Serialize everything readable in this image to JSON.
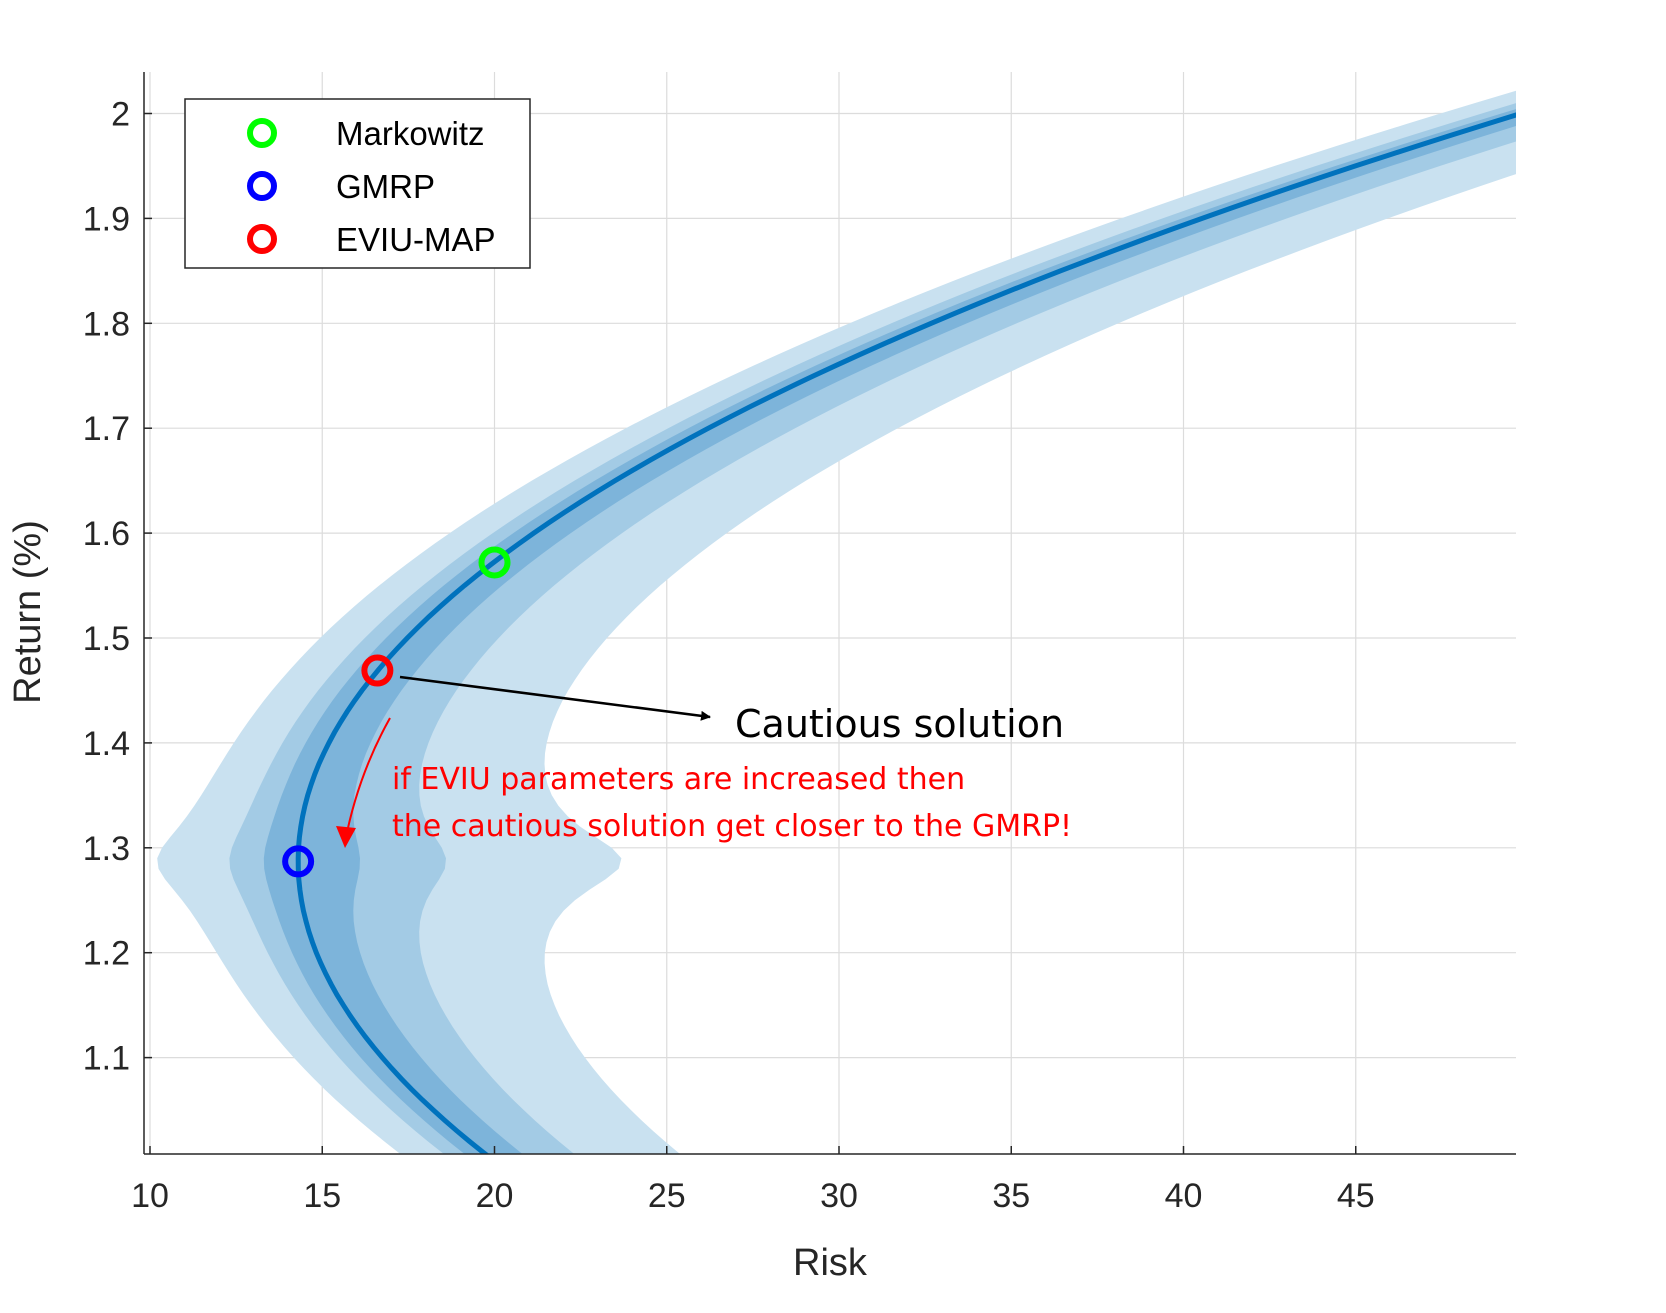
{
  "chart_data": {
    "type": "line",
    "xlabel": "Risk",
    "ylabel": "Return (%)",
    "xlim": [
      10,
      49.5
    ],
    "ylim": [
      1.02,
      2.04
    ],
    "xticks": [
      "10",
      "15",
      "20",
      "25",
      "30",
      "35",
      "40",
      "45"
    ],
    "yticks": [
      "1.1",
      "1.2",
      "1.3",
      "1.4",
      "1.5",
      "1.6",
      "1.7",
      "1.8",
      "1.9",
      "2"
    ],
    "grid": true,
    "legend_position": "top-left",
    "frontier": {
      "color": "#0072BD",
      "minimum_variance_point": [
        14.3,
        1.287
      ],
      "end_point": [
        49.5,
        1.997
      ],
      "bottom_point": [
        19.4,
        1.02
      ]
    },
    "bands": [
      {
        "color": "#c9e1f0",
        "inner_offset": 4.1,
        "outer_offset": 9.4
      },
      {
        "color": "#a3cbe5",
        "inner_offset": 2.0,
        "outer_offset": 4.3
      },
      {
        "color": "#7db4da",
        "inner_offset": 1.0,
        "outer_offset": 1.8
      }
    ],
    "markers": [
      {
        "name": "Markowitz",
        "x": 20.0,
        "y": 1.572,
        "color": "#00ff00"
      },
      {
        "name": "GMRP",
        "x": 14.3,
        "y": 1.287,
        "color": "#0000ff"
      },
      {
        "name": "EVIU-MAP",
        "x": 16.6,
        "y": 1.469,
        "color": "#ff0000"
      }
    ],
    "annotations": {
      "cautious": "Cautious solution",
      "red_line1": "if EVIU parameters are increased then",
      "red_line2": "the cautious solution get closer to the GMRP!",
      "red_color": "#ff0000"
    }
  }
}
